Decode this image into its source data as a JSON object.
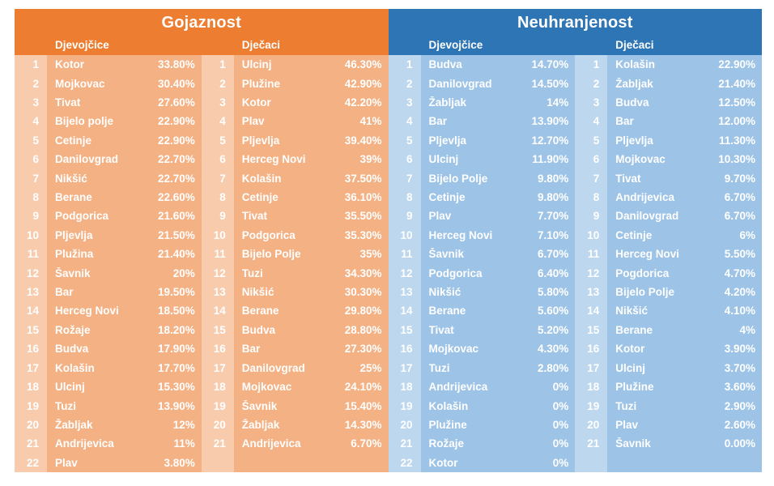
{
  "chart_data": [
    {
      "type": "table",
      "id": "gojaznost",
      "title": "Gojaznost",
      "palette": {
        "header": "#ED7D31",
        "row": "#F4B183",
        "rank": "#F8CBAD"
      },
      "groups": [
        {
          "header": "Djevojčice",
          "rows": [
            [
              "1",
              "Kotor",
              "33.80%"
            ],
            [
              "2",
              "Mojkovac",
              "30.40%"
            ],
            [
              "3",
              "Tivat",
              "27.60%"
            ],
            [
              "4",
              "Bijelo polje",
              "22.90%"
            ],
            [
              "5",
              "Cetinje",
              "22.90%"
            ],
            [
              "6",
              "Danilovgrad",
              "22.70%"
            ],
            [
              "7",
              "Nikšić",
              "22.70%"
            ],
            [
              "8",
              "Berane",
              "22.60%"
            ],
            [
              "9",
              "Podgorica",
              "21.60%"
            ],
            [
              "10",
              "Pljevlja",
              "21.50%"
            ],
            [
              "11",
              "Plužina",
              "21.40%"
            ],
            [
              "12",
              "Šavnik",
              "20%"
            ],
            [
              "13",
              "Bar",
              "19.50%"
            ],
            [
              "14",
              "Herceg Novi",
              "18.50%"
            ],
            [
              "15",
              "Rožaje",
              "18.20%"
            ],
            [
              "16",
              "Budva",
              "17.90%"
            ],
            [
              "17",
              "Kolašin",
              "17.70%"
            ],
            [
              "18",
              "Ulcinj",
              "15.30%"
            ],
            [
              "19",
              "Tuzi",
              "13.90%"
            ],
            [
              "20",
              "Žabljak",
              "12%"
            ],
            [
              "21",
              "Andrijevica",
              "11%"
            ],
            [
              "22",
              "Plav",
              "3.80%"
            ]
          ]
        },
        {
          "header": "Dječaci",
          "rows": [
            [
              "1",
              "Ulcinj",
              "46.30%"
            ],
            [
              "2",
              "Plužine",
              "42.90%"
            ],
            [
              "3",
              "Kotor",
              "42.20%"
            ],
            [
              "4",
              "Plav",
              "41%"
            ],
            [
              "5",
              "Pljevlja",
              "39.40%"
            ],
            [
              "6",
              "Herceg Novi",
              "39%"
            ],
            [
              "7",
              "Kolašin",
              "37.50%"
            ],
            [
              "8",
              "Cetinje",
              "36.10%"
            ],
            [
              "9",
              "Tivat",
              "35.50%"
            ],
            [
              "10",
              "Podgorica",
              "35.30%"
            ],
            [
              "11",
              "Bijelo Polje",
              "35%"
            ],
            [
              "12",
              "Tuzi",
              "34.30%"
            ],
            [
              "13",
              "Nikšić",
              "30.30%"
            ],
            [
              "14",
              "Berane",
              "29.80%"
            ],
            [
              "15",
              "Budva",
              "28.80%"
            ],
            [
              "16",
              "Bar",
              "27.30%"
            ],
            [
              "17",
              "Danilovgrad",
              "25%"
            ],
            [
              "18",
              "Mojkovac",
              "24.10%"
            ],
            [
              "19",
              "Šavnik",
              "15.40%"
            ],
            [
              "20",
              "Žabljak",
              "14.30%"
            ],
            [
              "21",
              "Andrijevica",
              "6.70%"
            ]
          ]
        }
      ]
    },
    {
      "type": "table",
      "id": "neuhranjenost",
      "title": "Neuhranjenost",
      "palette": {
        "header": "#2E75B6",
        "row": "#9DC3E6",
        "rank": "#BDD7EE"
      },
      "groups": [
        {
          "header": "Djevojčice",
          "rows": [
            [
              "1",
              "Budva",
              "14.70%"
            ],
            [
              "2",
              "Danilovgrad",
              "14.50%"
            ],
            [
              "3",
              "Žabljak",
              "14%"
            ],
            [
              "4",
              "Bar",
              "13.90%"
            ],
            [
              "5",
              "Pljevlja",
              "12.70%"
            ],
            [
              "6",
              "Ulcinj",
              "11.90%"
            ],
            [
              "7",
              "Bijelo Polje",
              "9.80%"
            ],
            [
              "8",
              "Cetinje",
              "9.80%"
            ],
            [
              "9",
              "Plav",
              "7.70%"
            ],
            [
              "10",
              "Herceg Novi",
              "7.10%"
            ],
            [
              "11",
              "Šavnik",
              "6.70%"
            ],
            [
              "12",
              "Podgorica",
              "6.40%"
            ],
            [
              "13",
              "Nikšić",
              "5.80%"
            ],
            [
              "14",
              "Berane",
              "5.60%"
            ],
            [
              "15",
              "Tivat",
              "5.20%"
            ],
            [
              "16",
              "Mojkovac",
              "4.30%"
            ],
            [
              "17",
              "Tuzi",
              "2.80%"
            ],
            [
              "18",
              "Andrijevica",
              "0%"
            ],
            [
              "19",
              "Kolašin",
              "0%"
            ],
            [
              "20",
              "Plužine",
              "0%"
            ],
            [
              "21",
              "Rožaje",
              "0%"
            ],
            [
              "22",
              "Kotor",
              "0%"
            ]
          ]
        },
        {
          "header": "Dječaci",
          "rows": [
            [
              "1",
              "Kolašin",
              "22.90%"
            ],
            [
              "2",
              "Žabljak",
              "21.40%"
            ],
            [
              "3",
              "Budva",
              "12.50%"
            ],
            [
              "4",
              "Bar",
              "12.00%"
            ],
            [
              "5",
              "Pljevlja",
              "11.30%"
            ],
            [
              "6",
              "Mojkovac",
              "10.30%"
            ],
            [
              "7",
              "Tivat",
              "9.70%"
            ],
            [
              "8",
              "Andrijevica",
              "6.70%"
            ],
            [
              "9",
              "Danilovgrad",
              "6.70%"
            ],
            [
              "10",
              "Cetinje",
              "6%"
            ],
            [
              "11",
              "Herceg Novi",
              "5.50%"
            ],
            [
              "12",
              "Pogdorica",
              "4.70%"
            ],
            [
              "13",
              "Bijelo Polje",
              "4.20%"
            ],
            [
              "14",
              "Nikšić",
              "4.10%"
            ],
            [
              "15",
              "Berane",
              "4%"
            ],
            [
              "16",
              "Kotor",
              "3.90%"
            ],
            [
              "17",
              "Ulcinj",
              "3.70%"
            ],
            [
              "18",
              "Plužine",
              "3.60%"
            ],
            [
              "19",
              "Tuzi",
              "2.90%"
            ],
            [
              "20",
              "Plav",
              "2.60%"
            ],
            [
              "21",
              "Šavnik",
              "0.00%"
            ]
          ]
        }
      ]
    }
  ]
}
